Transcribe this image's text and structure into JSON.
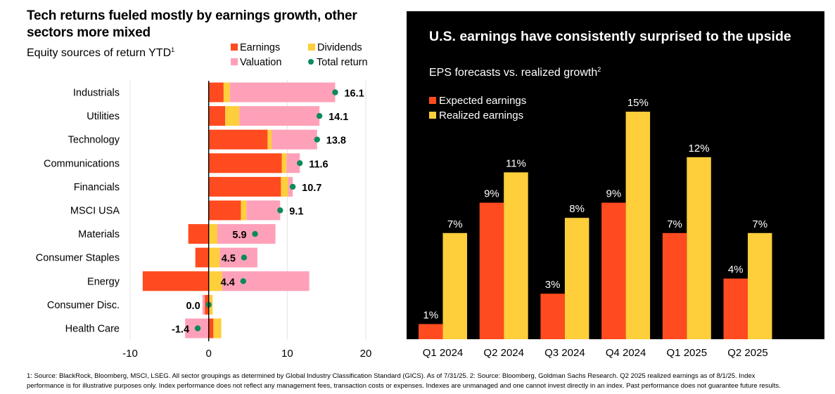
{
  "left": {
    "title": "Tech returns fueled mostly by earnings growth, other sectors more mixed",
    "subtitle": "Equity sources of return YTD",
    "subtitle_sup": "1",
    "legend": {
      "earnings": "Earnings",
      "dividends": "Dividends",
      "valuation": "Valuation",
      "total": "Total return"
    }
  },
  "right": {
    "title": "U.S. earnings have consistently surprised to the upside",
    "subtitle": "EPS forecasts vs. realized growth",
    "subtitle_sup": "2",
    "legend": {
      "expected": "Expected earnings",
      "realized": "Realized earnings"
    }
  },
  "footnote": {
    "line1": "1: Source: BlackRock, Bloomberg, MSCI, LSEG. All sector groupings as determined by Global Industry Classification Standard (GICS). As of 7/31/25. 2: Source: Bloomberg, Goldman Sachs Research. Q2 2025 realized earnings as of 8/1/25. Index",
    "line2": "performance is for illustrative purposes only.  Index performance does not reflect any management fees, transaction costs or expenses. Indexes are unmanaged and one cannot invest directly in an index. Past performance does not guarantee future results."
  },
  "colors": {
    "earnings": "#ff4b1f",
    "dividends": "#ffce3b",
    "valuation": "#fea1b8",
    "total": "#0c8a5c",
    "panel": "#000000"
  },
  "chart_data": [
    {
      "type": "bar",
      "orientation": "horizontal",
      "stacked": true,
      "title": "Tech returns fueled mostly by earnings growth, other sectors more mixed",
      "subtitle": "Equity sources of return YTD",
      "xlim": [
        -10,
        20
      ],
      "xticks": [
        -10,
        0,
        10,
        20
      ],
      "legend_position": "top-right",
      "categories": [
        "Industrials",
        "Utilities",
        "Technology",
        "Communications",
        "Financials",
        "MSCI USA",
        "Materials",
        "Consumer Staples",
        "Energy",
        "Consumer Disc.",
        "Health Care"
      ],
      "series": [
        {
          "name": "Earnings",
          "values": [
            1.9,
            2.1,
            7.5,
            9.3,
            9.2,
            4.1,
            -2.6,
            -1.7,
            -8.4,
            -0.5,
            0.6
          ]
        },
        {
          "name": "Dividends",
          "values": [
            0.8,
            1.8,
            0.5,
            0.6,
            0.9,
            0.7,
            1.1,
            1.4,
            1.7,
            0.5,
            1.0
          ]
        },
        {
          "name": "Valuation",
          "values": [
            13.4,
            10.2,
            5.8,
            1.7,
            0.6,
            4.3,
            7.4,
            4.8,
            11.1,
            -0.3,
            -3.0
          ]
        }
      ],
      "total_return": {
        "name": "Total return",
        "values": [
          16.1,
          14.1,
          13.8,
          11.6,
          10.7,
          9.1,
          5.9,
          4.5,
          4.4,
          0.0,
          -1.4
        ],
        "labels": [
          "16.1",
          "14.1",
          "13.8",
          "11.6",
          "10.7",
          "9.1",
          "5.9",
          "4.5",
          "4.4",
          "0.0",
          "-1.4"
        ]
      }
    },
    {
      "type": "bar",
      "title": "U.S. earnings have consistently surprised to the upside",
      "subtitle": "EPS forecasts vs. realized growth",
      "ylim": [
        0,
        20
      ],
      "legend_position": "top-left",
      "categories": [
        "Q1 2024",
        "Q2 2024",
        "Q3 2024",
        "Q4 2024",
        "Q1 2025",
        "Q2 2025"
      ],
      "series": [
        {
          "name": "Expected earnings",
          "values": [
            1,
            9,
            3,
            9,
            7,
            4
          ],
          "labels": [
            "1%",
            "9%",
            "3%",
            "9%",
            "7%",
            "4%"
          ]
        },
        {
          "name": "Realized earnings",
          "values": [
            7,
            11,
            8,
            15,
            12,
            7
          ],
          "labels": [
            "7%",
            "11%",
            "8%",
            "15%",
            "12%",
            "7%"
          ]
        }
      ]
    }
  ]
}
